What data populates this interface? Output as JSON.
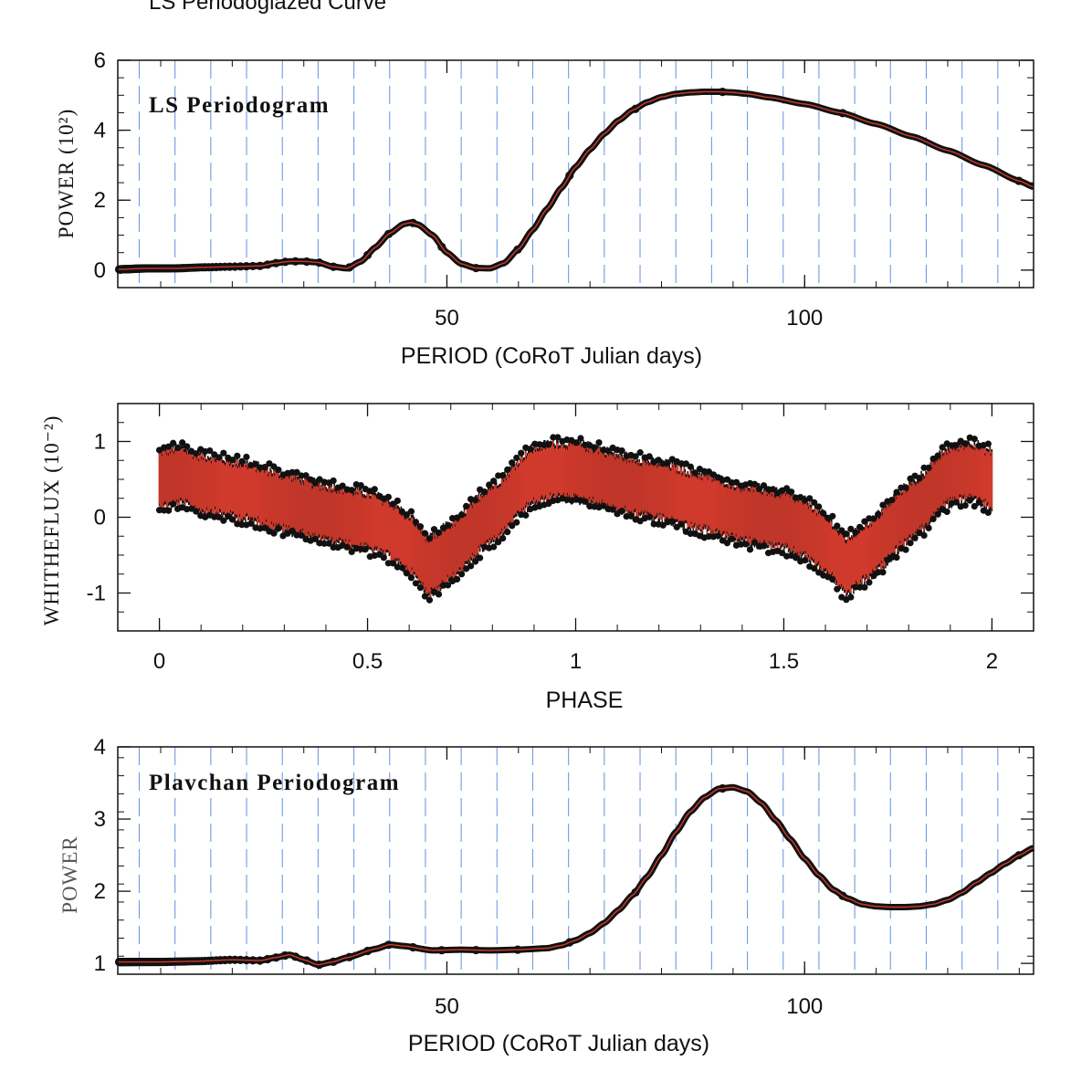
{
  "figure": {
    "top_caption": "LS Periodoglazed Curve"
  },
  "chart_data": [
    {
      "type": "line",
      "title": "LS Periodogram",
      "xlabel": "PERIOD (CoRoT Julian days)",
      "ylabel": "POWER (10²)",
      "xlim": [
        4,
        132
      ],
      "ylim": [
        -0.5,
        6
      ],
      "xticks": [
        "50",
        "100"
      ],
      "yticks": [
        "0",
        "2",
        "4",
        "6"
      ],
      "ytick_values": [
        0,
        2,
        4,
        6
      ],
      "xtick_values": [
        50,
        100
      ],
      "grid_x": [
        7,
        12,
        17,
        22,
        27,
        32,
        37,
        42,
        47,
        52,
        57,
        62,
        67,
        72,
        77,
        82,
        87,
        92,
        97,
        102,
        107,
        112,
        117,
        122,
        127
      ],
      "series": [
        {
          "name": "LS power",
          "x": [
            4,
            8,
            12,
            16,
            20,
            24,
            26,
            28,
            30,
            32,
            34,
            36,
            38,
            40,
            42,
            44,
            45,
            46,
            48,
            50,
            52,
            54,
            56,
            58,
            60,
            62,
            64,
            66,
            68,
            70,
            72,
            74,
            76,
            78,
            80,
            82,
            84,
            86,
            88,
            90,
            92,
            95,
            100,
            105,
            110,
            115,
            120,
            125,
            130,
            132
          ],
          "values": [
            0.02,
            0.05,
            0.05,
            0.08,
            0.1,
            0.12,
            0.2,
            0.25,
            0.25,
            0.22,
            0.1,
            0.05,
            0.25,
            0.65,
            1.05,
            1.32,
            1.36,
            1.3,
            1.0,
            0.5,
            0.18,
            0.06,
            0.05,
            0.2,
            0.6,
            1.15,
            1.75,
            2.35,
            2.95,
            3.45,
            3.9,
            4.28,
            4.58,
            4.8,
            4.95,
            5.04,
            5.08,
            5.1,
            5.1,
            5.08,
            5.04,
            4.94,
            4.75,
            4.5,
            4.18,
            3.82,
            3.42,
            3.0,
            2.55,
            2.38
          ]
        }
      ]
    },
    {
      "type": "scatter",
      "title": "",
      "xlabel": "PHASE",
      "ylabel": "WHITHEFLUX (10⁻²)",
      "xlim": [
        -0.1,
        2.1
      ],
      "ylim": [
        -1.5,
        1.5
      ],
      "xticks": [
        "0",
        "0.5",
        "1",
        "1.5",
        "2"
      ],
      "xtick_values": [
        0,
        0.5,
        1,
        1.5,
        2
      ],
      "yticks": [
        "-1",
        "0",
        "1"
      ],
      "ytick_values": [
        -1,
        0,
        1
      ],
      "series": [
        {
          "name": "phased flux (trend)",
          "x": [
            0.0,
            0.05,
            0.1,
            0.2,
            0.3,
            0.4,
            0.5,
            0.55,
            0.6,
            0.65,
            0.7,
            0.8,
            0.9,
            0.95,
            1.0,
            1.05,
            1.1,
            1.2,
            1.3,
            1.4,
            1.5,
            1.55,
            1.6,
            1.65,
            1.7,
            1.8,
            1.9,
            1.95,
            2.0
          ],
          "values": [
            0.5,
            0.55,
            0.45,
            0.35,
            0.2,
            0.05,
            -0.05,
            -0.15,
            -0.35,
            -0.65,
            -0.45,
            0.05,
            0.55,
            0.62,
            0.6,
            0.55,
            0.45,
            0.35,
            0.2,
            0.05,
            -0.05,
            -0.15,
            -0.35,
            -0.65,
            -0.45,
            0.05,
            0.55,
            0.62,
            0.5
          ],
          "scatter_half_width": 0.42
        }
      ]
    },
    {
      "type": "line",
      "title": "Plavchan Periodogram",
      "xlabel": "PERIOD (CoRoT Julian days)",
      "ylabel": "POWER",
      "xlim": [
        4,
        132
      ],
      "ylim": [
        0.85,
        4
      ],
      "xticks": [
        "50",
        "100"
      ],
      "xtick_values": [
        50,
        100
      ],
      "yticks": [
        "1",
        "2",
        "3",
        "4"
      ],
      "ytick_values": [
        1,
        2,
        3,
        4
      ],
      "grid_x": [
        7,
        12,
        17,
        22,
        27,
        32,
        37,
        42,
        47,
        52,
        57,
        62,
        67,
        72,
        77,
        82,
        87,
        92,
        97,
        102,
        107,
        112,
        117,
        122,
        127
      ],
      "series": [
        {
          "name": "Plavchan power",
          "x": [
            4,
            10,
            15,
            20,
            24,
            26,
            28,
            30,
            32,
            34,
            36,
            40,
            42,
            44,
            48,
            52,
            56,
            60,
            64,
            66,
            68,
            70,
            72,
            74,
            76,
            78,
            80,
            82,
            84,
            86,
            88,
            90,
            92,
            94,
            96,
            98,
            100,
            102,
            104,
            106,
            108,
            110,
            112,
            114,
            116,
            118,
            120,
            122,
            124,
            126,
            128,
            130,
            132
          ],
          "values": [
            1.02,
            1.02,
            1.03,
            1.05,
            1.04,
            1.08,
            1.12,
            1.05,
            0.98,
            1.02,
            1.08,
            1.2,
            1.26,
            1.24,
            1.18,
            1.19,
            1.18,
            1.19,
            1.21,
            1.25,
            1.32,
            1.42,
            1.56,
            1.74,
            1.95,
            2.2,
            2.5,
            2.82,
            3.1,
            3.3,
            3.42,
            3.44,
            3.38,
            3.22,
            2.98,
            2.72,
            2.45,
            2.22,
            2.02,
            1.9,
            1.82,
            1.79,
            1.78,
            1.78,
            1.79,
            1.82,
            1.88,
            1.98,
            2.12,
            2.25,
            2.38,
            2.5,
            2.6
          ]
        }
      ]
    }
  ],
  "colors": {
    "curve": "#d03a2c",
    "points": "#111111",
    "grid": "#6f9be0",
    "frame": "#111111"
  }
}
